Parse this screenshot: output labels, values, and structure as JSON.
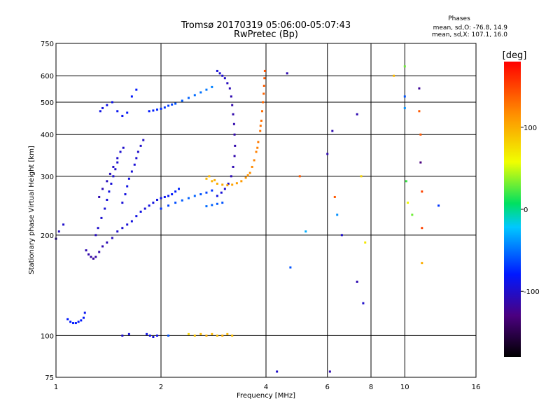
{
  "chart_data": {
    "type": "scatter",
    "title": "Tromsø 20170319 05:06:00-05:07:43",
    "subtitle": "RwPretec (Bp)",
    "xlabel": "Frequency [MHz]",
    "ylabel": "Stationary phase Virtual Height [km]",
    "x_scale": "log",
    "y_scale": "log",
    "xlim": [
      1,
      16
    ],
    "ylim": [
      75,
      750
    ],
    "x_ticks": [
      1,
      2,
      4,
      6,
      8,
      10,
      16
    ],
    "y_ticks": [
      75,
      100,
      200,
      300,
      400,
      500,
      600,
      750
    ],
    "grid": true,
    "stats": {
      "heading": "Phases",
      "line_o": "mean, sd,O: -76.8, 14.9",
      "line_x": "mean, sd,X: 107.1, 16.0"
    },
    "colorbar": {
      "label": "[deg]",
      "range": [
        -180,
        180
      ],
      "ticks": [
        100,
        0,
        -100
      ]
    },
    "series": [
      {
        "note": "F-region O/X trace segments (blue)",
        "points": [
          [
            1.0,
            195,
            -110
          ],
          [
            1.02,
            205,
            -105
          ],
          [
            1.05,
            215,
            -100
          ],
          [
            1.08,
            112,
            -80
          ],
          [
            1.1,
            110,
            -80
          ],
          [
            1.12,
            109,
            -78
          ],
          [
            1.14,
            109,
            -80
          ],
          [
            1.16,
            110,
            -82
          ],
          [
            1.18,
            111,
            -80
          ],
          [
            1.2,
            113,
            -82
          ],
          [
            1.21,
            117,
            -85
          ],
          [
            1.22,
            180,
            -110
          ],
          [
            1.24,
            175,
            -112
          ],
          [
            1.26,
            172,
            -115
          ],
          [
            1.28,
            170,
            -118
          ],
          [
            1.3,
            172,
            -115
          ],
          [
            1.33,
            178,
            -112
          ],
          [
            1.36,
            185,
            -110
          ],
          [
            1.4,
            190,
            -108
          ],
          [
            1.45,
            196,
            -105
          ],
          [
            1.5,
            205,
            -100
          ],
          [
            1.55,
            210,
            -98
          ],
          [
            1.6,
            215,
            -95
          ],
          [
            1.65,
            220,
            -92
          ],
          [
            1.7,
            228,
            -90
          ],
          [
            1.75,
            235,
            -90
          ],
          [
            1.3,
            200,
            -105
          ],
          [
            1.32,
            210,
            -100
          ],
          [
            1.35,
            225,
            -98
          ],
          [
            1.38,
            240,
            -95
          ],
          [
            1.4,
            255,
            -95
          ],
          [
            1.42,
            270,
            -92
          ],
          [
            1.44,
            285,
            -95
          ],
          [
            1.46,
            300,
            -98
          ],
          [
            1.48,
            315,
            -100
          ],
          [
            1.5,
            330,
            -98
          ],
          [
            1.55,
            250,
            -95
          ],
          [
            1.58,
            265,
            -92
          ],
          [
            1.6,
            280,
            -90
          ],
          [
            1.62,
            295,
            -92
          ],
          [
            1.65,
            310,
            -95
          ],
          [
            1.68,
            325,
            -95
          ],
          [
            1.7,
            340,
            -98
          ],
          [
            1.72,
            355,
            -100
          ],
          [
            1.75,
            370,
            -100
          ],
          [
            1.78,
            385,
            -102
          ],
          [
            1.33,
            260,
            -110
          ],
          [
            1.36,
            275,
            -108
          ],
          [
            1.4,
            290,
            -105
          ],
          [
            1.43,
            305,
            -105
          ],
          [
            1.46,
            320,
            -102
          ],
          [
            1.5,
            340,
            -100
          ],
          [
            1.53,
            355,
            -98
          ],
          [
            1.56,
            365,
            -100
          ],
          [
            1.34,
            470,
            -90
          ],
          [
            1.36,
            480,
            -92
          ],
          [
            1.4,
            490,
            -90
          ],
          [
            1.45,
            500,
            -88
          ],
          [
            1.5,
            470,
            -85
          ],
          [
            1.55,
            455,
            -85
          ],
          [
            1.6,
            465,
            -82
          ],
          [
            1.65,
            520,
            -80
          ],
          [
            1.7,
            545,
            -80
          ],
          [
            1.8,
            240,
            -95
          ],
          [
            1.85,
            245,
            -92
          ],
          [
            1.9,
            250,
            -92
          ],
          [
            1.95,
            255,
            -90
          ],
          [
            2.0,
            258,
            -88
          ],
          [
            2.05,
            260,
            -85
          ],
          [
            2.1,
            262,
            -82
          ],
          [
            2.15,
            265,
            -80
          ],
          [
            2.2,
            270,
            -78
          ],
          [
            2.25,
            275,
            -75
          ],
          [
            1.85,
            470,
            -80
          ],
          [
            1.9,
            472,
            -78
          ],
          [
            1.95,
            475,
            -75
          ],
          [
            2.0,
            478,
            -72
          ],
          [
            2.05,
            482,
            -70
          ],
          [
            2.1,
            488,
            -68
          ],
          [
            2.15,
            492,
            -65
          ],
          [
            2.2,
            495,
            -60
          ],
          [
            2.3,
            505,
            -58
          ],
          [
            2.4,
            515,
            -55
          ],
          [
            2.5,
            525,
            -52
          ],
          [
            2.6,
            535,
            -50
          ],
          [
            2.7,
            545,
            -48
          ],
          [
            2.8,
            555,
            -45
          ],
          [
            2.9,
            620,
            -95
          ],
          [
            2.95,
            610,
            -98
          ],
          [
            3.0,
            600,
            -100
          ],
          [
            3.05,
            590,
            -102
          ],
          [
            3.1,
            570,
            -105
          ],
          [
            3.15,
            550,
            -108
          ],
          [
            3.18,
            520,
            -110
          ],
          [
            3.2,
            490,
            -112
          ],
          [
            3.22,
            460,
            -112
          ],
          [
            3.24,
            430,
            -112
          ],
          [
            3.25,
            400,
            -112
          ],
          [
            3.26,
            370,
            -112
          ],
          [
            3.25,
            345,
            -112
          ],
          [
            3.22,
            320,
            -110
          ],
          [
            3.18,
            300,
            -108
          ],
          [
            3.12,
            285,
            -105
          ],
          [
            3.05,
            275,
            -100
          ],
          [
            2.98,
            268,
            -95
          ],
          [
            2.9,
            262,
            -90
          ],
          [
            2.8,
            272,
            -70
          ],
          [
            2.7,
            268,
            -65
          ],
          [
            2.6,
            265,
            -60
          ],
          [
            2.5,
            262,
            -55
          ],
          [
            2.4,
            258,
            -55
          ],
          [
            2.3,
            254,
            -58
          ],
          [
            2.2,
            250,
            -62
          ],
          [
            2.1,
            245,
            -65
          ],
          [
            2.0,
            240,
            -70
          ],
          [
            3.0,
            250,
            -60
          ],
          [
            2.9,
            248,
            -58
          ],
          [
            2.8,
            246,
            -55
          ],
          [
            2.7,
            244,
            -52
          ]
        ]
      },
      {
        "note": "F2 extraordinary trace (yellow-orange)",
        "points": [
          [
            2.7,
            295,
            95
          ],
          [
            2.8,
            290,
            98
          ],
          [
            2.9,
            285,
            100
          ],
          [
            3.0,
            283,
            102
          ],
          [
            3.1,
            282,
            104
          ],
          [
            3.2,
            283,
            106
          ],
          [
            3.3,
            286,
            108
          ],
          [
            3.4,
            290,
            110
          ],
          [
            3.5,
            297,
            112
          ],
          [
            3.6,
            307,
            115
          ],
          [
            3.65,
            320,
            118
          ],
          [
            3.7,
            335,
            120
          ],
          [
            3.75,
            355,
            122
          ],
          [
            3.8,
            380,
            125
          ],
          [
            3.85,
            410,
            128
          ],
          [
            3.88,
            440,
            130
          ],
          [
            3.9,
            470,
            132
          ],
          [
            3.92,
            500,
            134
          ],
          [
            3.94,
            530,
            136
          ],
          [
            3.95,
            560,
            138
          ],
          [
            3.96,
            590,
            140
          ],
          [
            3.97,
            620,
            142
          ],
          [
            2.75,
            300,
            96
          ],
          [
            2.85,
            292,
            99
          ],
          [
            3.55,
            302,
            113
          ],
          [
            3.78,
            365,
            123
          ],
          [
            3.86,
            425,
            129
          ]
        ]
      },
      {
        "note": "E-region echoes near 100 km",
        "points": [
          [
            1.82,
            101,
            -90
          ],
          [
            1.86,
            100,
            -92
          ],
          [
            1.9,
            99,
            -95
          ],
          [
            1.95,
            100,
            -90
          ],
          [
            2.4,
            101,
            80
          ],
          [
            2.5,
            100,
            90
          ],
          [
            2.6,
            101,
            95
          ],
          [
            2.7,
            100,
            100
          ],
          [
            2.8,
            101,
            95
          ],
          [
            2.9,
            100,
            92
          ],
          [
            3.0,
            100,
            100
          ],
          [
            3.1,
            101,
            95
          ],
          [
            3.2,
            100,
            92
          ],
          [
            1.55,
            100,
            -100
          ],
          [
            1.62,
            101,
            -95
          ],
          [
            2.1,
            100,
            -60
          ]
        ]
      },
      {
        "note": "Scattered points",
        "points": [
          [
            4.3,
            78,
            -100
          ],
          [
            4.6,
            610,
            -110
          ],
          [
            4.7,
            160,
            -60
          ],
          [
            5.0,
            300,
            140
          ],
          [
            5.2,
            205,
            -30
          ],
          [
            6.0,
            350,
            -110
          ],
          [
            6.1,
            78,
            -110
          ],
          [
            6.2,
            410,
            -110
          ],
          [
            6.3,
            260,
            140
          ],
          [
            6.4,
            230,
            -40
          ],
          [
            6.6,
            200,
            -100
          ],
          [
            7.3,
            460,
            -110
          ],
          [
            7.5,
            300,
            80
          ],
          [
            7.7,
            190,
            70
          ],
          [
            7.3,
            145,
            -110
          ],
          [
            7.6,
            125,
            -100
          ],
          [
            9.3,
            600,
            95
          ],
          [
            10.0,
            640,
            30
          ],
          [
            10.0,
            520,
            -60
          ],
          [
            10.0,
            480,
            -40
          ],
          [
            10.1,
            290,
            20
          ],
          [
            10.2,
            250,
            60
          ],
          [
            11.0,
            550,
            -120
          ],
          [
            11.0,
            470,
            140
          ],
          [
            11.1,
            400,
            140
          ],
          [
            11.1,
            330,
            -130
          ],
          [
            11.2,
            270,
            150
          ],
          [
            11.2,
            210,
            150
          ],
          [
            11.2,
            165,
            100
          ],
          [
            12.5,
            245,
            -70
          ],
          [
            10.5,
            230,
            30
          ]
        ]
      }
    ]
  }
}
